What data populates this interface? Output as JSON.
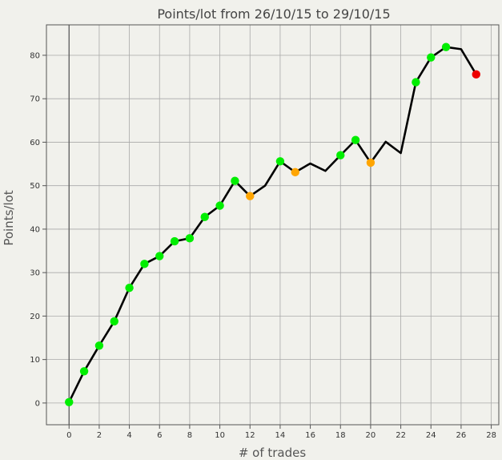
{
  "chart_data": {
    "type": "line",
    "title": "Points/lot from 26/10/15 to 29/10/15",
    "xlabel": "# of trades",
    "ylabel": "Points/lot",
    "xlim": [
      -1.5,
      28.5
    ],
    "ylim": [
      -5,
      87
    ],
    "x_ticks": [
      0,
      2,
      4,
      6,
      8,
      10,
      12,
      14,
      16,
      18,
      20,
      22,
      24,
      26,
      28
    ],
    "y_ticks": [
      0,
      10,
      20,
      30,
      40,
      50,
      60,
      70,
      80
    ],
    "grid": true,
    "marker_colors": {
      "green": "#00ee00",
      "orange": "#ffa500",
      "red": "#ee0000"
    },
    "series": [
      {
        "line_color": "#000000",
        "points": [
          {
            "x": 0,
            "y": 0.2,
            "marker": "green"
          },
          {
            "x": 1,
            "y": 7.3,
            "marker": "green"
          },
          {
            "x": 2,
            "y": 13.2,
            "marker": "green"
          },
          {
            "x": 3,
            "y": 18.8,
            "marker": "green"
          },
          {
            "x": 4,
            "y": 26.5,
            "marker": "green"
          },
          {
            "x": 5,
            "y": 32.0,
            "marker": "green"
          },
          {
            "x": 6,
            "y": 33.8,
            "marker": "green"
          },
          {
            "x": 7,
            "y": 37.2,
            "marker": "green"
          },
          {
            "x": 8,
            "y": 37.9,
            "marker": "green"
          },
          {
            "x": 9,
            "y": 42.8,
            "marker": "green"
          },
          {
            "x": 10,
            "y": 45.4,
            "marker": "green"
          },
          {
            "x": 11,
            "y": 51.1,
            "marker": "green"
          },
          {
            "x": 12,
            "y": 47.6,
            "marker": "orange"
          },
          {
            "x": 13,
            "y": 50.0,
            "marker": null
          },
          {
            "x": 14,
            "y": 55.6,
            "marker": "green"
          },
          {
            "x": 15,
            "y": 53.1,
            "marker": "orange"
          },
          {
            "x": 16,
            "y": 55.1,
            "marker": null
          },
          {
            "x": 17,
            "y": 53.4,
            "marker": null
          },
          {
            "x": 18,
            "y": 57.0,
            "marker": "green"
          },
          {
            "x": 19,
            "y": 60.5,
            "marker": "green"
          },
          {
            "x": 20,
            "y": 55.3,
            "marker": "orange"
          },
          {
            "x": 21,
            "y": 60.1,
            "marker": null
          },
          {
            "x": 22,
            "y": 57.5,
            "marker": null
          },
          {
            "x": 23,
            "y": 73.8,
            "marker": "green"
          },
          {
            "x": 24,
            "y": 79.5,
            "marker": "green"
          },
          {
            "x": 25,
            "y": 81.9,
            "marker": "green"
          },
          {
            "x": 26,
            "y": 81.4,
            "marker": null
          },
          {
            "x": 27,
            "y": 75.6,
            "marker": "red"
          }
        ]
      }
    ]
  }
}
